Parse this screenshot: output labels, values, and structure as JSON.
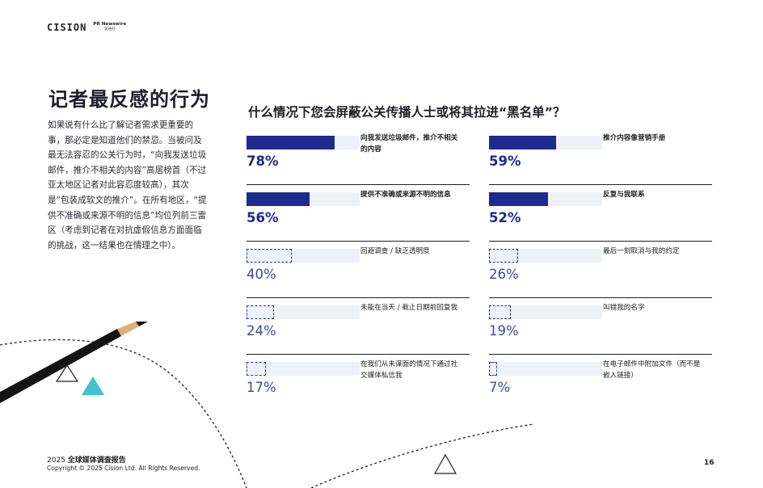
{
  "logo": {
    "brand": "CISION",
    "partner": "PR Newswire",
    "partner_sub": "美通社"
  },
  "page_title": "记者最反感的行为",
  "intro": "如果说有什么比了解记者需求更重要的事，那必定是知道他们的禁忌。当被问及最无法容忍的公关行为时，“向我发送垃圾邮件，推介不相关的内容”高居榜首（不过亚太地区记者对此容忍度较高），其次是“包装成软文的推介”。在所有地区，“提供不准确或来源不明的信息”均位列前三雷区（考虑到记者在对抗虚假信息方面面临的挑战，这一结果也在情理之中）。",
  "chart_title": "什么情况下您会屏蔽公关传播人士或将其拉进“黑名单”？",
  "stats": [
    {
      "pct_label": "78%",
      "value": 78,
      "label": "向我发送垃圾邮件，推介不相关的内容",
      "style": "bold"
    },
    {
      "pct_label": "59%",
      "value": 59,
      "label": "推介内容像营销手册",
      "style": "bold"
    },
    {
      "pct_label": "56%",
      "value": 56,
      "label": "提供不准确或来源不明的信息",
      "style": "bold"
    },
    {
      "pct_label": "52%",
      "value": 52,
      "label": "反复与我联系",
      "style": "bold"
    },
    {
      "pct_label": "40%",
      "value": 40,
      "label": "回避调查 / 缺乏透明度",
      "style": "light"
    },
    {
      "pct_label": "26%",
      "value": 26,
      "label": "最后一刻取消与我的约定",
      "style": "light"
    },
    {
      "pct_label": "24%",
      "value": 24,
      "label": "未能在当天 / 截止日期前回复我",
      "style": "light"
    },
    {
      "pct_label": "19%",
      "value": 19,
      "label": "叫错我的名字",
      "style": "light"
    },
    {
      "pct_label": "17%",
      "value": 17,
      "label": "在我们从未谋面的情况下通过社交媒体私信我",
      "style": "light"
    },
    {
      "pct_label": "7%",
      "value": 7,
      "label": "在电子邮件中附加文件（而不是嵌入链接）",
      "style": "light"
    }
  ],
  "footer": {
    "year": "2025",
    "report_title": "全球媒体调查报告",
    "copyright": "Copyright © 2025 Cision Ltd. All Rights Reserved."
  },
  "page_number": "16",
  "colors": {
    "accent_navy": "#1f2a8f",
    "track": "#eef1f6",
    "teal": "#3fc3cf"
  }
}
